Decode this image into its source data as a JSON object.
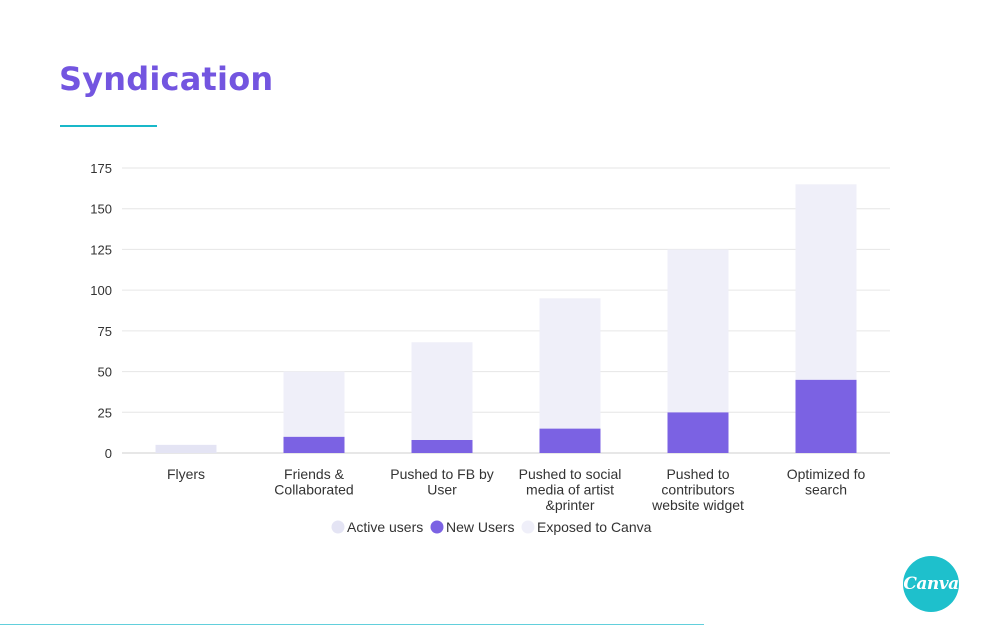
{
  "slide": {
    "title": "Syndication",
    "logo_text": "Canva"
  },
  "colors": {
    "title": "#7355e0",
    "accent_line": "#19b8c9",
    "active_users": "#e4e4f4",
    "new_users": "#7b62e3",
    "exposed_to_canva": "#efeff9",
    "gridline": "#e6e6e6",
    "logo": "#1ec0cc"
  },
  "chart_data": {
    "type": "bar",
    "stacked": true,
    "categories": [
      [
        "Flyers"
      ],
      [
        "Friends &",
        "Collaborated"
      ],
      [
        "Pushed to FB by",
        "User"
      ],
      [
        "Pushed to social",
        "media of artist",
        "&printer"
      ],
      [
        "Pushed to",
        "contributors",
        "website widget"
      ],
      [
        "Optimized fo",
        "search"
      ]
    ],
    "series": [
      {
        "name": "Active users",
        "color": "#e4e4f4",
        "values": [
          5,
          0,
          0,
          0,
          0,
          0
        ]
      },
      {
        "name": "New Users",
        "color": "#7b62e3",
        "values": [
          0,
          10,
          8,
          15,
          25,
          45
        ]
      },
      {
        "name": "Exposed to Canva",
        "color": "#efeff9",
        "values": [
          0,
          40,
          60,
          80,
          100,
          120
        ]
      }
    ],
    "ylim": [
      0,
      175
    ],
    "yticks": [
      0,
      25,
      50,
      75,
      100,
      125,
      150,
      175
    ],
    "grid": true,
    "legend_position": "bottom-center"
  }
}
